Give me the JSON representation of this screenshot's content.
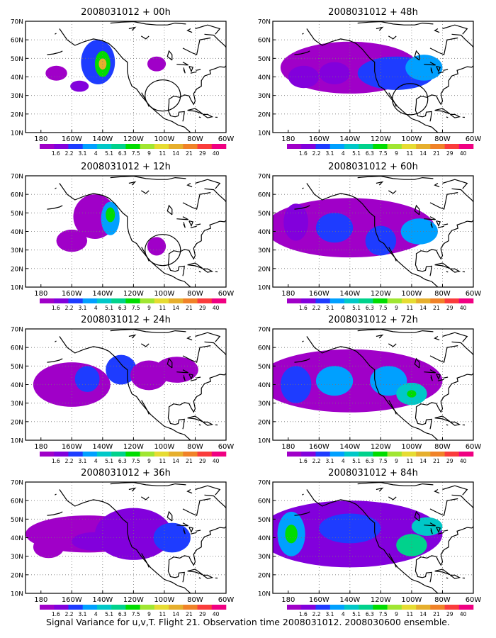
{
  "caption": "Signal Variance for u,v,T. Flight 21. Observation time 2008031012. 2008030600 ensemble.",
  "colorbar": {
    "labels": [
      "1.6",
      "2.2",
      "3.1",
      "4",
      "5.1",
      "6.3",
      "7.5",
      "9",
      "11",
      "14",
      "21",
      "29",
      "40"
    ],
    "colors": [
      "#a000c8",
      "#8200dc",
      "#1e3cff",
      "#00a0ff",
      "#00c8c8",
      "#00d28c",
      "#00dc00",
      "#a0e632",
      "#e6dc32",
      "#e6af2d",
      "#f08228",
      "#fa3c3c",
      "#f00082"
    ]
  },
  "axes": {
    "xticks": [
      "180",
      "160W",
      "140W",
      "120W",
      "100W",
      "80W",
      "60W"
    ],
    "yticks": [
      "10N",
      "20N",
      "30N",
      "40N",
      "50N",
      "60N",
      "70N"
    ]
  },
  "chart_data": [
    {
      "type": "heatmap",
      "title": "2008031012 + 00h",
      "lead_hours": 0,
      "circle": [
        -101,
        30
      ],
      "blobs": [
        [
          -143,
          48,
          11,
          12,
          2
        ],
        [
          -140,
          47,
          5,
          7,
          6
        ],
        [
          -140,
          47,
          2.5,
          3,
          9
        ],
        [
          -155,
          35,
          6,
          3,
          1
        ],
        [
          -170,
          42,
          7,
          4,
          0
        ],
        [
          -105,
          47,
          6,
          4,
          0
        ]
      ]
    },
    {
      "type": "heatmap",
      "title": "2008031012 + 12h",
      "lead_hours": 12,
      "circle": [
        -101,
        30
      ],
      "blobs": [
        [
          -145,
          48,
          14,
          12,
          0
        ],
        [
          -135,
          47,
          6,
          9,
          3
        ],
        [
          -135,
          49,
          3,
          4,
          6
        ],
        [
          -160,
          35,
          10,
          6,
          0
        ],
        [
          -105,
          32,
          6,
          5,
          0
        ]
      ]
    },
    {
      "type": "heatmap",
      "title": "2008031012 + 24h",
      "lead_hours": 24,
      "circle": null,
      "blobs": [
        [
          -160,
          40,
          25,
          12,
          0
        ],
        [
          -150,
          43,
          8,
          7,
          2
        ],
        [
          -128,
          48,
          10,
          8,
          2
        ],
        [
          -110,
          45,
          12,
          8,
          0
        ],
        [
          -92,
          48,
          14,
          7,
          0
        ]
      ]
    },
    {
      "type": "heatmap",
      "title": "2008031012 + 36h",
      "lead_hours": 36,
      "circle": null,
      "blobs": [
        [
          -150,
          42,
          40,
          10,
          0
        ],
        [
          -120,
          42,
          25,
          14,
          1
        ],
        [
          -95,
          40,
          12,
          8,
          2
        ],
        [
          -145,
          38,
          15,
          5,
          1
        ],
        [
          -175,
          35,
          10,
          6,
          0
        ]
      ]
    },
    {
      "type": "heatmap",
      "title": "2008031012 + 48h",
      "lead_hours": 48,
      "circle": [
        -101,
        28
      ],
      "blobs": [
        [
          -140,
          45,
          45,
          14,
          0
        ],
        [
          -110,
          42,
          25,
          9,
          2
        ],
        [
          -92,
          45,
          12,
          7,
          3
        ],
        [
          -150,
          42,
          10,
          6,
          1
        ],
        [
          -170,
          40,
          10,
          6,
          1
        ]
      ]
    },
    {
      "type": "heatmap",
      "title": "2008031012 + 60h",
      "lead_hours": 60,
      "circle": null,
      "blobs": [
        [
          -140,
          42,
          55,
          16,
          0
        ],
        [
          -150,
          42,
          12,
          8,
          2
        ],
        [
          -120,
          35,
          10,
          8,
          2
        ],
        [
          -95,
          40,
          12,
          7,
          3
        ],
        [
          -175,
          45,
          8,
          10,
          1
        ]
      ]
    },
    {
      "type": "heatmap",
      "title": "2008031012 + 72h",
      "lead_hours": 72,
      "circle": null,
      "blobs": [
        [
          -140,
          42,
          60,
          17,
          0
        ],
        [
          -175,
          40,
          10,
          10,
          2
        ],
        [
          -150,
          42,
          12,
          8,
          3
        ],
        [
          -115,
          42,
          12,
          8,
          3
        ],
        [
          -100,
          35,
          10,
          6,
          4
        ],
        [
          -100,
          35,
          3,
          2,
          6
        ]
      ]
    },
    {
      "type": "heatmap",
      "title": "2008031012 + 84h",
      "lead_hours": 84,
      "circle": null,
      "blobs": [
        [
          -140,
          42,
          60,
          18,
          1
        ],
        [
          -178,
          42,
          9,
          12,
          3
        ],
        [
          -178,
          42,
          4,
          5,
          6
        ],
        [
          -100,
          36,
          10,
          6,
          5
        ],
        [
          -90,
          46,
          10,
          5,
          4
        ],
        [
          -140,
          45,
          20,
          8,
          2
        ]
      ]
    }
  ]
}
